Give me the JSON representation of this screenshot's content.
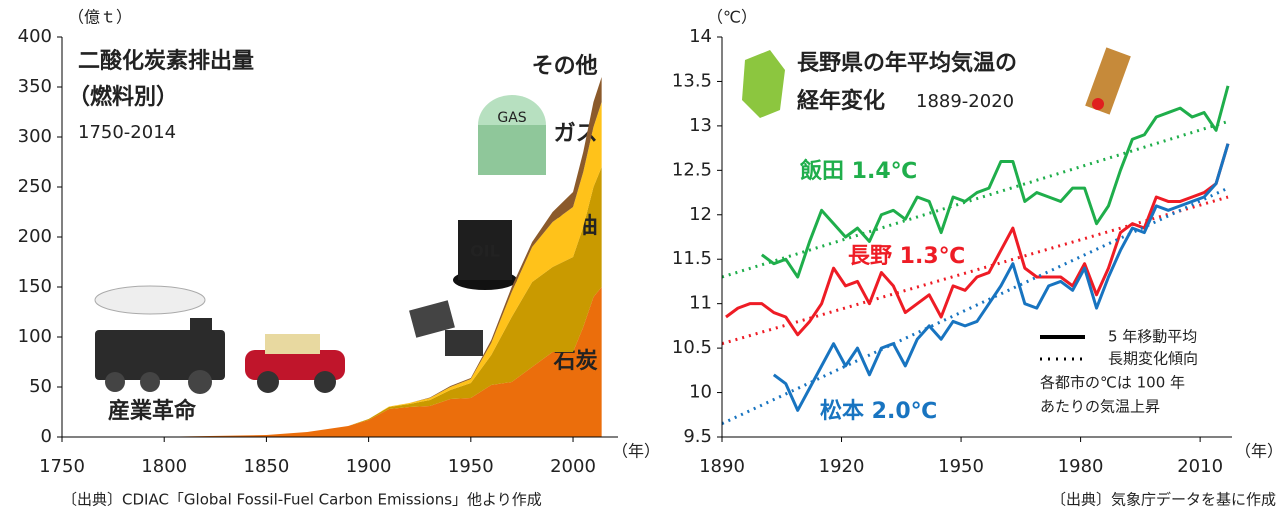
{
  "chart_data": [
    {
      "type": "stacked_area",
      "title": [
        "二酸化炭素排出量",
        "（燃料別）"
      ],
      "subtitle": "1750-2014",
      "y_unit": "（億ｔ）",
      "x_unit": "（年）",
      "annotation": "産業革命",
      "source": "〔出典〕CDIAC「Global Fossil-Fuel Carbon Emissions」他より作成",
      "x": [
        1750,
        1800,
        1850,
        1870,
        1890,
        1900,
        1910,
        1920,
        1930,
        1940,
        1950,
        1960,
        1970,
        1980,
        1990,
        2000,
        2005,
        2010,
        2014
      ],
      "series": [
        {
          "name": "石炭",
          "color": "#eb6e0c",
          "values": [
            0,
            0.3,
            2,
            5,
            11,
            17,
            28,
            30,
            31,
            38,
            39,
            52,
            55,
            70,
            85,
            85,
            110,
            140,
            150
          ]
        },
        {
          "name": "石油",
          "color": "#c99a00",
          "values": [
            0,
            0,
            0,
            0,
            0,
            1,
            2,
            3,
            6,
            9,
            15,
            30,
            65,
            85,
            85,
            95,
            100,
            110,
            120
          ]
        },
        {
          "name": "ガス",
          "color": "#ffc21a",
          "values": [
            0,
            0,
            0,
            0,
            0,
            0,
            0.5,
            1,
            2,
            3,
            4,
            12,
            25,
            35,
            45,
            50,
            55,
            60,
            65
          ]
        },
        {
          "name": "その他",
          "color": "#8b5a2b",
          "values": [
            0,
            0,
            0,
            0,
            0,
            0,
            0,
            0,
            0.5,
            1,
            1,
            3,
            5,
            5,
            10,
            15,
            20,
            25,
            25
          ]
        }
      ],
      "xlim": [
        1750,
        2022
      ],
      "xticks": [
        1750,
        1800,
        1850,
        1900,
        1950,
        2000
      ],
      "ylim": [
        0,
        400
      ],
      "yticks": [
        0,
        50,
        100,
        150,
        200,
        250,
        300,
        350,
        400
      ]
    },
    {
      "type": "line",
      "title": [
        "長野県の年平均気温の",
        "経年変化"
      ],
      "subtitle": "1889-2020",
      "y_unit": "（℃）",
      "x_unit": "（年）",
      "source": "〔出典〕気象庁データを基に作成",
      "legend": [
        "5 年移動平均",
        "長期変化傾向"
      ],
      "note": [
        "各都市の℃は 100 年",
        "あたりの気温上昇"
      ],
      "x": [
        1891,
        1894,
        1897,
        1900,
        1903,
        1906,
        1909,
        1912,
        1915,
        1918,
        1921,
        1924,
        1927,
        1930,
        1933,
        1936,
        1939,
        1942,
        1945,
        1948,
        1951,
        1954,
        1957,
        1960,
        1963,
        1966,
        1969,
        1972,
        1975,
        1978,
        1981,
        1984,
        1987,
        1990,
        1993,
        1996,
        1999,
        2002,
        2005,
        2008,
        2011,
        2014,
        2017
      ],
      "trend_x": [
        1890,
        2017
      ],
      "series": [
        {
          "name": "飯田 1.4℃",
          "color": "#1fae4b",
          "trend": [
            11.3,
            13.05
          ],
          "values": [
            null,
            null,
            null,
            11.55,
            11.45,
            11.5,
            11.3,
            11.7,
            12.05,
            11.9,
            11.75,
            11.85,
            11.7,
            12.0,
            12.05,
            11.95,
            12.2,
            12.15,
            11.8,
            12.2,
            12.15,
            12.25,
            12.3,
            12.6,
            12.6,
            12.15,
            12.25,
            12.2,
            12.15,
            12.3,
            12.3,
            11.9,
            12.1,
            12.5,
            12.85,
            12.9,
            13.1,
            13.15,
            13.2,
            13.1,
            13.15,
            12.95,
            13.45
          ]
        },
        {
          "name": "長野 1.3℃",
          "color": "#ee1c25",
          "trend": [
            10.55,
            12.2
          ],
          "values": [
            10.85,
            10.95,
            11.0,
            11.0,
            10.9,
            10.85,
            10.65,
            10.8,
            11.0,
            11.4,
            11.2,
            11.25,
            11.0,
            11.35,
            11.2,
            10.9,
            11.0,
            11.1,
            10.85,
            11.2,
            11.15,
            11.3,
            11.35,
            11.6,
            11.85,
            11.4,
            11.3,
            11.3,
            11.3,
            11.2,
            11.45,
            11.1,
            11.4,
            11.8,
            11.9,
            11.85,
            12.2,
            12.15,
            12.15,
            12.2,
            12.25,
            12.35,
            12.8
          ]
        },
        {
          "name": "松本 2.0℃",
          "color": "#1874c0",
          "trend": [
            9.65,
            12.3
          ],
          "values": [
            null,
            null,
            null,
            null,
            10.2,
            10.1,
            9.8,
            10.05,
            10.3,
            10.55,
            10.3,
            10.5,
            10.2,
            10.5,
            10.55,
            10.3,
            10.6,
            10.75,
            10.6,
            10.8,
            10.75,
            10.8,
            11.0,
            11.2,
            11.45,
            11.0,
            10.95,
            11.2,
            11.25,
            11.15,
            11.4,
            10.95,
            11.3,
            11.6,
            11.85,
            11.8,
            12.1,
            12.05,
            12.1,
            12.15,
            12.2,
            12.35,
            12.8
          ]
        }
      ],
      "xlim": [
        1890,
        2018
      ],
      "xticks": [
        1890,
        1920,
        1950,
        1980,
        2010
      ],
      "ylim": [
        9.5,
        14
      ],
      "yticks": [
        9.5,
        10,
        10.5,
        11,
        11.5,
        12,
        12.5,
        13,
        13.5,
        14
      ]
    }
  ]
}
